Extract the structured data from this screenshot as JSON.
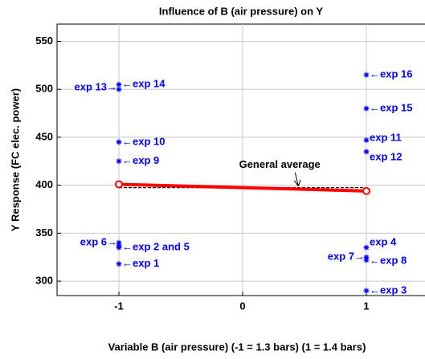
{
  "chart_data": {
    "type": "scatter",
    "title": "Influence of B (air pressure) on Y",
    "x_label": "Variable B (air pressure)  (-1 = 1.3 bars) (1 = 1.4 bars)",
    "y_label": "Y Response (FC elec. power)",
    "xlim": [
      -1.5,
      1.5
    ],
    "ylim": [
      285,
      568
    ],
    "xticks": [
      -1,
      0,
      1
    ],
    "yticks": [
      300,
      350,
      400,
      450,
      500,
      550
    ],
    "grid": true,
    "points": {
      "color": "#0000ff",
      "x": [
        -1,
        -1,
        -1,
        -1,
        -1,
        -1,
        -1,
        -1,
        1,
        1,
        1,
        1,
        1,
        1,
        1,
        1
      ],
      "values": [
        505,
        500,
        445,
        425,
        340,
        337,
        335,
        318,
        515,
        480,
        447,
        435,
        335,
        325,
        322,
        290
      ]
    },
    "mean_line": {
      "color": "#ff0000",
      "x": [
        -1,
        1
      ],
      "values": [
        401,
        394
      ]
    },
    "average": {
      "color": "#000000",
      "x": [
        -1,
        1
      ],
      "value": 397.5
    },
    "annotations": [
      {
        "text": "exp 13→",
        "x": -1,
        "y": 502
      },
      {
        "text": "←exp 14",
        "x": -1,
        "y": 505
      },
      {
        "text": "←exp 10",
        "x": -1,
        "y": 445
      },
      {
        "text": "←exp 9",
        "x": -1,
        "y": 425
      },
      {
        "text": "exp 6→",
        "x": -1,
        "y": 340
      },
      {
        "text": "←exp 2 and 5",
        "x": -1,
        "y": 335
      },
      {
        "text": "←exp 1",
        "x": -1,
        "y": 318
      },
      {
        "text": "←exp 16",
        "x": 1,
        "y": 515
      },
      {
        "text": "←exp 15",
        "x": 1,
        "y": 480
      },
      {
        "text": "exp 11",
        "x": 1,
        "y": 449
      },
      {
        "text": "exp 12",
        "x": 1,
        "y": 429
      },
      {
        "text": "exp 4",
        "x": 1,
        "y": 340
      },
      {
        "text": "exp 7→",
        "x": 1,
        "y": 325
      },
      {
        "text": "←exp 8",
        "x": 1,
        "y": 321
      },
      {
        "text": "←exp 3",
        "x": 1,
        "y": 290
      }
    ],
    "average_label": {
      "text": "General average",
      "x": 0.3,
      "y": 421,
      "arrow_to": [
        0.45,
        399
      ]
    }
  }
}
